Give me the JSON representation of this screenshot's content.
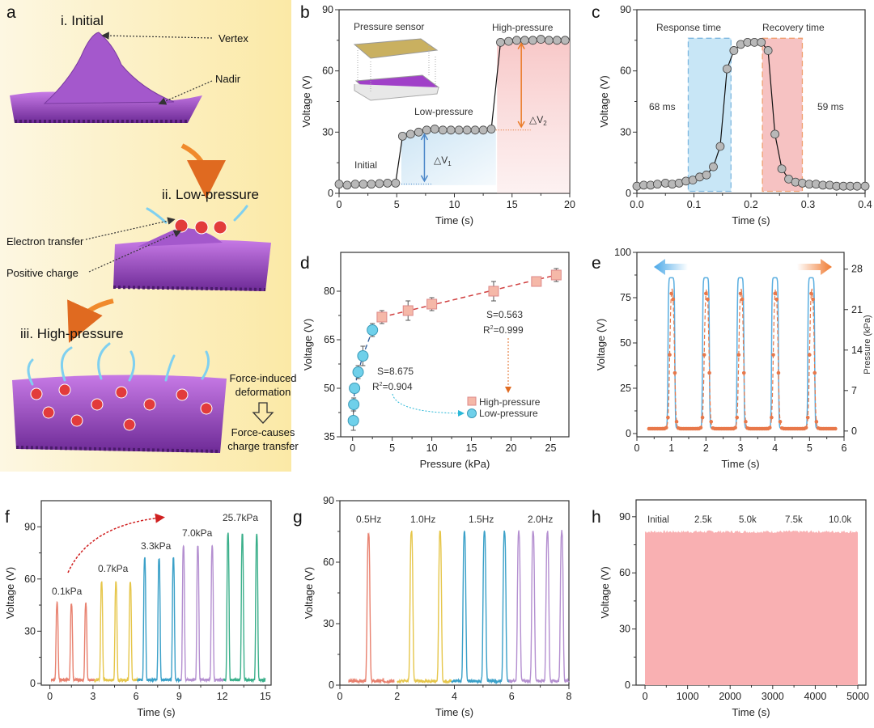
{
  "panel_letters": [
    "a",
    "b",
    "c",
    "d",
    "e",
    "f",
    "g",
    "h"
  ],
  "panel_a": {
    "stage_1": "i. Initial",
    "stage_2": "ii. Low-pressure",
    "stage_3": "iii. High-pressure",
    "vertex": "Vertex",
    "nadir": "Nadir",
    "electron_transfer": "Electron transfer",
    "positive_charge": "Positive charge",
    "force_1a": "Force-induced",
    "force_1b": "deformation",
    "force_2a": "Force-causes",
    "force_2b": "charge transfer",
    "colors": {
      "surface": "#9b45c2",
      "charge": "#e23b3b",
      "arrow": "#f08a2c",
      "background": "#fdf3cf"
    }
  },
  "chart_data": [
    {
      "panel": "b",
      "type": "line",
      "xlabel": "Time (s)",
      "ylabel": "Voltage (V)",
      "xlim": [
        0,
        20
      ],
      "ylim": [
        0,
        90
      ],
      "xticks": [
        "0",
        "5",
        "10",
        "15",
        "20"
      ],
      "yticks": [
        "0",
        "30",
        "60",
        "90"
      ],
      "x": [
        0,
        0.7,
        1.4,
        2.1,
        2.8,
        3.5,
        4.2,
        4.9,
        5.5,
        6.2,
        6.9,
        7.6,
        8.3,
        9.0,
        9.7,
        10.4,
        11.1,
        11.8,
        12.5,
        13.2,
        14.0,
        14.7,
        15.4,
        16.1,
        16.8,
        17.5,
        18.2,
        18.9,
        19.6
      ],
      "y": [
        4.5,
        4,
        4.5,
        4.5,
        4.5,
        4.8,
        5,
        5,
        28,
        29,
        30,
        31,
        31.5,
        31,
        31,
        31,
        31,
        31,
        31,
        31.5,
        74,
        74.5,
        75,
        75,
        75,
        75.5,
        75,
        75,
        75
      ],
      "annotations": {
        "inset": "Pressure sensor",
        "high": "High-pressure",
        "low": "Low-pressure",
        "initial": "Initial",
        "dv1": "△V",
        "dv1_sub": "1",
        "dv2": "△V",
        "dv2_sub": "2"
      },
      "colors": {
        "marker": "#b8b8b8",
        "low_fill": "#cfe6f5",
        "high_fill": "#f8d2d2",
        "dv1": "#4a86c8",
        "dv2": "#ea7a26"
      }
    },
    {
      "panel": "c",
      "type": "line",
      "xlabel": "Time (s)",
      "ylabel": "Voltage (V)",
      "xlim": [
        0,
        0.4
      ],
      "ylim": [
        0,
        90
      ],
      "xticks": [
        "0.0",
        "0.1",
        "0.2",
        "0.3",
        "0.4"
      ],
      "yticks": [
        "0",
        "30",
        "60",
        "90"
      ],
      "x": [
        0,
        0.012,
        0.024,
        0.036,
        0.05,
        0.062,
        0.074,
        0.086,
        0.098,
        0.11,
        0.122,
        0.134,
        0.146,
        0.158,
        0.17,
        0.182,
        0.194,
        0.206,
        0.218,
        0.23,
        0.242,
        0.254,
        0.266,
        0.278,
        0.29,
        0.302,
        0.314,
        0.326,
        0.338,
        0.35,
        0.362,
        0.374,
        0.386,
        0.4
      ],
      "y": [
        3.5,
        4,
        4,
        4.5,
        5,
        4.5,
        5,
        6,
        6.5,
        8,
        9,
        13,
        23,
        61,
        70,
        73,
        74,
        74,
        74,
        70,
        29,
        12,
        7,
        5.5,
        5,
        4.5,
        4.5,
        4,
        4,
        3.5,
        3.5,
        3.5,
        3.5,
        3.5
      ],
      "response_window": [
        0.09,
        0.165
      ],
      "recovery_window": [
        0.22,
        0.29
      ],
      "annotations": {
        "response": "Response time",
        "recovery": "Recovery time",
        "response_value": "68 ms",
        "recovery_value": "59 ms"
      },
      "colors": {
        "response": "#7fb8e0",
        "recovery": "#f0a070"
      }
    },
    {
      "panel": "d",
      "type": "scatter",
      "xlabel": "Pressure (kPa)",
      "ylabel": "Voltage (V)",
      "xlim": [
        -1.5,
        27.3
      ],
      "ylim": [
        35,
        92
      ],
      "xticks": [
        "0",
        "5",
        "10",
        "15",
        "20",
        "25"
      ],
      "yticks": [
        "35",
        "50",
        "65",
        "80"
      ],
      "series": [
        {
          "name": "High-pressure",
          "x": [
            3.7,
            7.0,
            10.0,
            17.8,
            23.2,
            25.7
          ],
          "y": [
            72,
            74,
            76,
            80,
            83,
            85
          ],
          "err": [
            2,
            3,
            2,
            3,
            1,
            2
          ],
          "color": "#f5b8a8"
        },
        {
          "name": "Low-pressure",
          "x": [
            0.1,
            0.15,
            0.25,
            0.7,
            1.3,
            2.5
          ],
          "y": [
            40,
            45,
            50,
            55,
            60,
            68
          ],
          "err": [
            3,
            2,
            1.5,
            2,
            3,
            2
          ],
          "color": "#6fd0ea"
        }
      ],
      "annotations": {
        "s_high": "S=0.563",
        "r2_high": "R",
        "r2_high_val": "=0.999",
        "s_low": "S=8.675",
        "r2_low": "R",
        "r2_low_val": "=0.904",
        "sup": "2"
      }
    },
    {
      "panel": "e",
      "type": "line",
      "xlabel": "Time (s)",
      "ylabel": "Voltage (V)",
      "ylabel_right": "Pressure (kPa)",
      "xlim": [
        0,
        6
      ],
      "ylim": [
        -1.8,
        100
      ],
      "ylim_right": [
        -1,
        30.9
      ],
      "xticks": [
        "0",
        "1",
        "2",
        "3",
        "4",
        "5",
        "6"
      ],
      "yticks": [
        "0",
        "25",
        "50",
        "75",
        "100"
      ],
      "yticks_right": [
        "0",
        "7",
        "14",
        "21",
        "28"
      ],
      "pulse_centers": [
        1.0,
        2.0,
        3.0,
        4.0,
        5.05
      ],
      "voltage_peak": 86,
      "voltage_base": 3,
      "pressure_peak": 26,
      "pressure_base": 0.4,
      "series": [
        {
          "color": "#5aaee0"
        },
        {
          "color": "#e8784a"
        }
      ]
    },
    {
      "panel": "f",
      "type": "line",
      "xlabel": "Time (s)",
      "ylabel": "Voltage (V)",
      "xlim": [
        -0.6,
        15.4
      ],
      "ylim": [
        -1,
        105
      ],
      "xticks": [
        "0",
        "3",
        "6",
        "9",
        "12",
        "15"
      ],
      "yticks": [
        "0",
        "30",
        "60",
        "90"
      ],
      "series": [
        {
          "name": "0.1kPa",
          "range": [
            0.1,
            3.1
          ],
          "peaks": [
            0.5,
            1.5,
            2.5
          ],
          "peak": 46,
          "color": "#e8806e"
        },
        {
          "name": "0.7kPa",
          "range": [
            3.1,
            6.1
          ],
          "peaks": [
            3.6,
            4.6,
            5.6
          ],
          "peak": 58,
          "color": "#e6c64a"
        },
        {
          "name": "3.3kPa",
          "range": [
            6.1,
            9.1
          ],
          "peaks": [
            6.6,
            7.6,
            8.6
          ],
          "peak": 72,
          "color": "#3aa0c8"
        },
        {
          "name": "7.0kPa",
          "range": [
            9.1,
            12.1
          ],
          "peaks": [
            9.3,
            10.3,
            11.3
          ],
          "peak": 79,
          "color": "#b48fd0"
        },
        {
          "name": "25.7kPa",
          "range": [
            12.1,
            15.0
          ],
          "peaks": [
            12.4,
            13.4,
            14.4
          ],
          "peak": 86,
          "color": "#3aaf8a"
        }
      ]
    },
    {
      "panel": "g",
      "type": "line",
      "xlabel": "Time (s)",
      "ylabel": "Voltage (V)",
      "xlim": [
        0,
        8
      ],
      "ylim": [
        0,
        90
      ],
      "xticks": [
        "0",
        "2",
        "4",
        "6",
        "8"
      ],
      "yticks": [
        "0",
        "30",
        "60",
        "90"
      ],
      "series": [
        {
          "name": "0.5Hz",
          "range": [
            0.3,
            1.9
          ],
          "peaks": [
            1.0
          ],
          "peak": 74,
          "color": "#e8806e"
        },
        {
          "name": "1.0Hz",
          "range": [
            2.0,
            3.9
          ],
          "peaks": [
            2.5,
            3.5
          ],
          "peak": 75,
          "color": "#e6c64a"
        },
        {
          "name": "1.5Hz",
          "range": [
            3.9,
            5.9
          ],
          "peaks": [
            4.35,
            5.05,
            5.75
          ],
          "peak": 75,
          "color": "#3aa0c8"
        },
        {
          "name": "2.0Hz",
          "range": [
            5.9,
            8.0
          ],
          "peaks": [
            6.25,
            6.75,
            7.25,
            7.75
          ],
          "peak": 75,
          "color": "#b48fd0"
        }
      ]
    },
    {
      "panel": "h",
      "type": "area",
      "xlabel": "Time (s)",
      "ylabel": "Voltage (V)",
      "xlim": [
        -210,
        5190
      ],
      "ylim": [
        0,
        99
      ],
      "xticks": [
        "0",
        "1000",
        "2000",
        "3000",
        "4000",
        "5000"
      ],
      "yticks": [
        "0",
        "30",
        "60",
        "90"
      ],
      "x_range": [
        0,
        5000
      ],
      "level": 82,
      "cycle_labels": [
        "Initial",
        "2.5k",
        "5.0k",
        "7.5k",
        "10.0k"
      ],
      "color": "#f9b0b2"
    }
  ]
}
